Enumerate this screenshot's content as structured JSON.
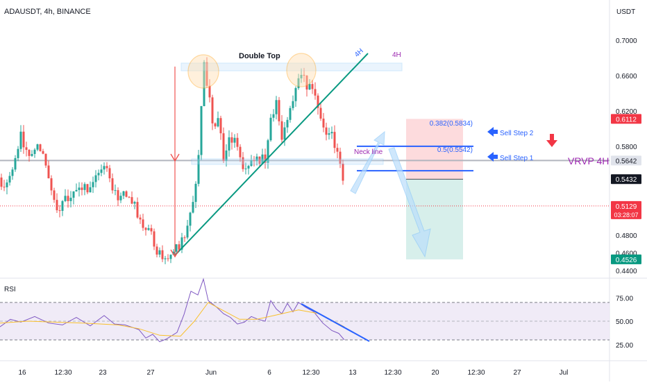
{
  "header": {
    "symbol": "ADAUSDT, 4h, BINANCE",
    "currency": "USDT"
  },
  "colors": {
    "up": "#26a69a",
    "down": "#ef5350",
    "trendline": "#089981",
    "fib_line": "#2962ff",
    "rsi_line": "#7e57c2",
    "rsi_ma": "#f9c02a",
    "rsi_band": "#ede7f6",
    "rsi_trend": "#2962ff"
  },
  "chart_data": [
    {
      "type": "candlestick",
      "title": "ADAUSDT, 4h, BINANCE",
      "ylabel": "USDT",
      "ylim": [
        0.435,
        0.725
      ],
      "y_ticks": [
        "0.7000",
        "0.6600",
        "0.6200",
        "0.5800",
        "0.4800",
        "0.4600",
        "0.4400"
      ],
      "x_ticks": [
        "16",
        "12:30",
        "23",
        "27",
        "Jun",
        "6",
        "12:30",
        "13",
        "12:30",
        "20",
        "12:30",
        "27",
        "Jul"
      ],
      "price_tags": [
        {
          "label": "0.6112",
          "value": 0.6112,
          "color": "#f23645"
        },
        {
          "label": "0.5642",
          "value": 0.5642,
          "color": "#e0e3eb",
          "text_color": "#131722"
        },
        {
          "label": "0.5432",
          "value": 0.5432,
          "color": "#131722"
        },
        {
          "label": "0.5129",
          "value": 0.5129,
          "color": "#f23645",
          "extra": "03:28:07"
        },
        {
          "label": "0.4526",
          "value": 0.4526,
          "color": "#089981"
        }
      ],
      "last_price": 0.5129,
      "horizontal_line": 0.5642,
      "price_path": [
        [
          0,
          0.545
        ],
        [
          8,
          0.528
        ],
        [
          18,
          0.552
        ],
        [
          30,
          0.59
        ],
        [
          42,
          0.57
        ],
        [
          55,
          0.585
        ],
        [
          65,
          0.56
        ],
        [
          75,
          0.532
        ],
        [
          85,
          0.506
        ],
        [
          95,
          0.522
        ],
        [
          110,
          0.535
        ],
        [
          125,
          0.53
        ],
        [
          140,
          0.545
        ],
        [
          155,
          0.556
        ],
        [
          165,
          0.528
        ],
        [
          180,
          0.522
        ],
        [
          195,
          0.51
        ],
        [
          205,
          0.492
        ],
        [
          215,
          0.486
        ],
        [
          222,
          0.47
        ],
        [
          230,
          0.458
        ],
        [
          238,
          0.452
        ],
        [
          248,
          0.455
        ],
        [
          258,
          0.468
        ],
        [
          270,
          0.492
        ],
        [
          280,
          0.525
        ],
        [
          288,
          0.585
        ],
        [
          293,
          0.68
        ],
        [
          300,
          0.64
        ],
        [
          308,
          0.6
        ],
        [
          315,
          0.612
        ],
        [
          322,
          0.56
        ],
        [
          330,
          0.585
        ],
        [
          340,
          0.59
        ],
        [
          350,
          0.552
        ],
        [
          360,
          0.565
        ],
        [
          372,
          0.562
        ],
        [
          382,
          0.568
        ],
        [
          390,
          0.612
        ],
        [
          398,
          0.628
        ],
        [
          405,
          0.592
        ],
        [
          412,
          0.608
        ],
        [
          420,
          0.628
        ],
        [
          428,
          0.65
        ],
        [
          436,
          0.66
        ],
        [
          444,
          0.648
        ],
        [
          452,
          0.64
        ],
        [
          460,
          0.62
        ],
        [
          468,
          0.588
        ],
        [
          478,
          0.6
        ],
        [
          486,
          0.57
        ],
        [
          492,
          0.55
        ],
        [
          497,
          0.513
        ]
      ],
      "annotations": [
        {
          "text": "Double Top"
        },
        {
          "text": "4H"
        },
        {
          "text": "4H"
        },
        {
          "text": "Neck line"
        },
        {
          "text": "0.382(0.5834)",
          "value": 0.5834
        },
        {
          "text": "0.5(0.5542)",
          "value": 0.5542
        },
        {
          "text": "Sell Step 2"
        },
        {
          "text": "Sell Step 1"
        },
        {
          "text": "VRVP 4H"
        }
      ],
      "target_zone": {
        "top": 0.6112,
        "entry": 0.5432,
        "bottom": 0.4526
      }
    },
    {
      "type": "line",
      "title": "RSI",
      "ylim": [
        15,
        100
      ],
      "y_ticks": [
        "75.00",
        "50.00",
        "25.00"
      ],
      "band": [
        30,
        70
      ],
      "rsi_path": [
        [
          0,
          44
        ],
        [
          15,
          52
        ],
        [
          30,
          49
        ],
        [
          50,
          55
        ],
        [
          70,
          48
        ],
        [
          90,
          46
        ],
        [
          110,
          54
        ],
        [
          130,
          45
        ],
        [
          150,
          56
        ],
        [
          165,
          47
        ],
        [
          180,
          46
        ],
        [
          200,
          41
        ],
        [
          210,
          32
        ],
        [
          220,
          36
        ],
        [
          230,
          28
        ],
        [
          240,
          31
        ],
        [
          255,
          38
        ],
        [
          265,
          57
        ],
        [
          275,
          82
        ],
        [
          285,
          78
        ],
        [
          293,
          95
        ],
        [
          300,
          72
        ],
        [
          312,
          65
        ],
        [
          322,
          58
        ],
        [
          332,
          54
        ],
        [
          342,
          47
        ],
        [
          352,
          49
        ],
        [
          362,
          55
        ],
        [
          372,
          52
        ],
        [
          382,
          50
        ],
        [
          390,
          72
        ],
        [
          398,
          63
        ],
        [
          406,
          58
        ],
        [
          414,
          69
        ],
        [
          422,
          60
        ],
        [
          430,
          70
        ],
        [
          440,
          65
        ],
        [
          452,
          60
        ],
        [
          465,
          48
        ],
        [
          478,
          40
        ],
        [
          488,
          37
        ],
        [
          496,
          30
        ]
      ],
      "ma_path": [
        [
          0,
          48
        ],
        [
          40,
          50
        ],
        [
          80,
          49
        ],
        [
          120,
          48
        ],
        [
          170,
          46
        ],
        [
          200,
          42
        ],
        [
          230,
          35
        ],
        [
          260,
          34
        ],
        [
          280,
          50
        ],
        [
          300,
          70
        ],
        [
          320,
          62
        ],
        [
          345,
          52
        ],
        [
          370,
          52
        ],
        [
          400,
          57
        ],
        [
          430,
          62
        ],
        [
          460,
          58
        ],
        [
          496,
          44
        ]
      ]
    }
  ]
}
